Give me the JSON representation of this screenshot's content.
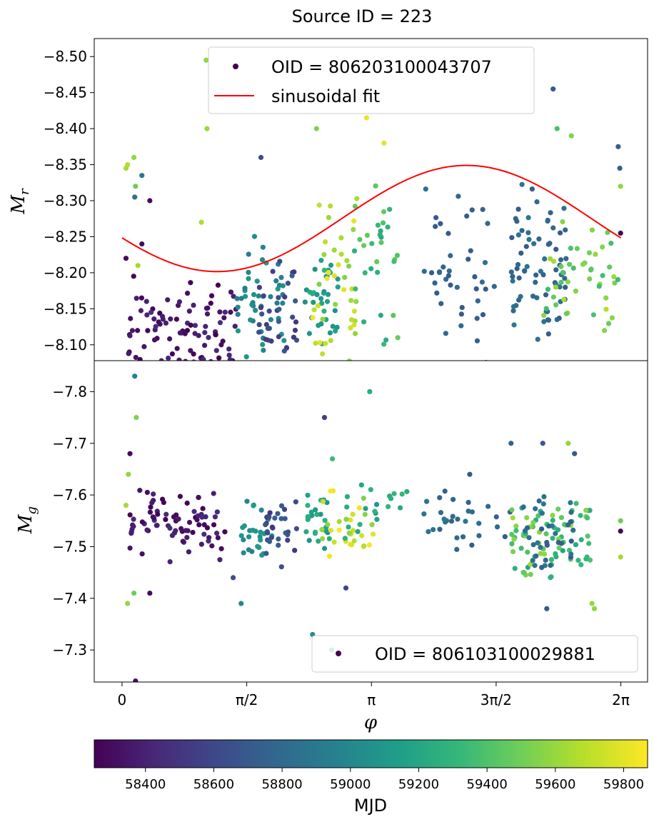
{
  "chart_data": {
    "type": "scatter",
    "title": "Source ID = 223",
    "colors": {
      "fit_line": "#ff0000",
      "viridis": [
        "#440154",
        "#482878",
        "#3e4989",
        "#31688e",
        "#26828e",
        "#1f9e89",
        "#35b779",
        "#6ece58",
        "#b5de2b",
        "#fde725"
      ]
    },
    "x_axis": {
      "label": "φ",
      "range": [
        -0.35,
        6.62
      ],
      "ticks": [
        {
          "value": 0,
          "label": "0"
        },
        {
          "value": 1.5708,
          "label": "π/2"
        },
        {
          "value": 3.1416,
          "label": "π"
        },
        {
          "value": 4.7124,
          "label": "3π/2"
        },
        {
          "value": 6.2832,
          "label": "2π"
        }
      ]
    },
    "panels": [
      {
        "ylabel": "M",
        "ylabel_sub": "r",
        "ylim": [
          -8.078,
          -8.525
        ],
        "yticks": [
          "−8.50",
          "−8.45",
          "−8.40",
          "−8.35",
          "−8.30",
          "−8.25",
          "−8.20",
          "−8.15",
          "−8.10"
        ],
        "ytick_values": [
          -8.5,
          -8.45,
          -8.4,
          -8.35,
          -8.3,
          -8.25,
          -8.2,
          -8.15,
          -8.1
        ],
        "legend": {
          "position": "upper center",
          "entries": [
            "OID = 806203100043707",
            "sinusoidal fit"
          ]
        },
        "fit": {
          "mean": -8.2753,
          "amplitude": 0.0737,
          "peak_phase": 4.34,
          "label": "sinusoidal fit"
        },
        "clusters": [
          {
            "x": [
              0.05,
              1.45
            ],
            "y": [
              -8.2,
              -8.04
            ],
            "n": 100,
            "mjd": [
              58250,
              58470
            ],
            "seed": 11
          },
          {
            "x": [
              1.45,
              2.05
            ],
            "y": [
              -8.27,
              -8.05
            ],
            "n": 45,
            "mjd": [
              58900,
              59120
            ],
            "seed": 12
          },
          {
            "x": [
              1.7,
              2.2
            ],
            "y": [
              -8.24,
              -8.05
            ],
            "n": 35,
            "mjd": [
              58500,
              58750
            ],
            "seed": 13
          },
          {
            "x": [
              2.3,
              2.75
            ],
            "y": [
              -8.24,
              -8.07
            ],
            "n": 35,
            "mjd": [
              59050,
              59300
            ],
            "seed": 14
          },
          {
            "x": [
              2.4,
              3.0
            ],
            "y": [
              -8.32,
              -8.06
            ],
            "n": 40,
            "mjd": [
              59550,
              59870
            ],
            "seed": 15
          },
          {
            "x": [
              2.9,
              3.5
            ],
            "y": [
              -8.35,
              -8.06
            ],
            "n": 30,
            "mjd": [
              59200,
              59500
            ],
            "seed": 16
          },
          {
            "x": [
              3.8,
              4.7
            ],
            "y": [
              -8.33,
              -8.06
            ],
            "n": 40,
            "mjd": [
              58700,
              58850
            ],
            "seed": 17
          },
          {
            "x": [
              4.9,
              5.6
            ],
            "y": [
              -8.34,
              -8.08
            ],
            "n": 70,
            "mjd": [
              58700,
              58900
            ],
            "seed": 18
          },
          {
            "x": [
              5.3,
              6.25
            ],
            "y": [
              -8.3,
              -8.08
            ],
            "n": 45,
            "mjd": [
              59350,
              59700
            ],
            "seed": 19
          }
        ],
        "points": [
          {
            "x": 0.05,
            "y": -8.345,
            "mjd": 59650
          },
          {
            "x": 0.07,
            "y": -8.35,
            "mjd": 59680
          },
          {
            "x": 0.15,
            "y": -8.36,
            "mjd": 59600
          },
          {
            "x": 0.16,
            "y": -8.305,
            "mjd": 58850
          },
          {
            "x": 0.17,
            "y": -8.32,
            "mjd": 59500
          },
          {
            "x": 0.25,
            "y": -8.335,
            "mjd": 58900
          },
          {
            "x": 0.2,
            "y": -8.21,
            "mjd": 59650
          },
          {
            "x": 0.05,
            "y": -8.22,
            "mjd": 58300
          },
          {
            "x": 0.35,
            "y": -8.3,
            "mjd": 58300
          },
          {
            "x": 0.25,
            "y": -8.24,
            "mjd": 58300
          },
          {
            "x": 1.06,
            "y": -8.495,
            "mjd": 59600
          },
          {
            "x": 1.07,
            "y": -8.4,
            "mjd": 59620
          },
          {
            "x": 1.0,
            "y": -8.27,
            "mjd": 59680
          },
          {
            "x": 1.25,
            "y": -8.1,
            "mjd": 58300
          },
          {
            "x": 1.27,
            "y": -8.105,
            "mjd": 58300
          },
          {
            "x": 1.75,
            "y": -8.36,
            "mjd": 58650
          },
          {
            "x": 2.45,
            "y": -8.4,
            "mjd": 59550
          },
          {
            "x": 3.08,
            "y": -8.415,
            "mjd": 59820
          },
          {
            "x": 3.3,
            "y": -8.38,
            "mjd": 59800
          },
          {
            "x": 5.43,
            "y": -8.455,
            "mjd": 58700
          },
          {
            "x": 5.66,
            "y": -8.39,
            "mjd": 59550
          },
          {
            "x": 5.48,
            "y": -8.4,
            "mjd": 59400
          },
          {
            "x": 6.28,
            "y": -8.255,
            "mjd": 58280
          },
          {
            "x": 5.48,
            "y": -8.135,
            "mjd": 58800
          },
          {
            "x": 3.9,
            "y": -8.2,
            "mjd": 58700
          },
          {
            "x": 6.25,
            "y": -8.375,
            "mjd": 58750
          },
          {
            "x": 6.27,
            "y": -8.345,
            "mjd": 58750
          },
          {
            "x": 6.28,
            "y": -8.32,
            "mjd": 59600
          }
        ]
      },
      {
        "ylabel": "M",
        "ylabel_sub": "g",
        "ylim": [
          -7.238,
          -7.86
        ],
        "yticks": [
          "−7.8",
          "−7.7",
          "−7.6",
          "−7.5",
          "−7.4",
          "−7.3"
        ],
        "ytick_values": [
          -7.8,
          -7.7,
          -7.6,
          -7.5,
          -7.4,
          -7.3
        ],
        "legend": {
          "position": "lower right",
          "entries": [
            "OID = 806103100029881"
          ]
        },
        "clusters": [
          {
            "x": [
              0.1,
              1.3
            ],
            "y": [
              -7.62,
              -7.46
            ],
            "n": 80,
            "mjd": [
              58250,
              58470
            ],
            "seed": 21
          },
          {
            "x": [
              1.5,
              1.9
            ],
            "y": [
              -7.6,
              -7.46
            ],
            "n": 25,
            "mjd": [
              58950,
              59150
            ],
            "seed": 22
          },
          {
            "x": [
              1.8,
              2.2
            ],
            "y": [
              -7.62,
              -7.44
            ],
            "n": 30,
            "mjd": [
              58500,
              58750
            ],
            "seed": 23
          },
          {
            "x": [
              2.3,
              2.65
            ],
            "y": [
              -7.62,
              -7.47
            ],
            "n": 25,
            "mjd": [
              59050,
              59300
            ],
            "seed": 24
          },
          {
            "x": [
              2.5,
              3.2
            ],
            "y": [
              -7.62,
              -7.47
            ],
            "n": 30,
            "mjd": [
              59550,
              59870
            ],
            "seed": 25
          },
          {
            "x": [
              2.8,
              3.6
            ],
            "y": [
              -7.65,
              -7.48
            ],
            "n": 20,
            "mjd": [
              59100,
              59400
            ],
            "seed": 26
          },
          {
            "x": [
              3.8,
              4.9
            ],
            "y": [
              -7.62,
              -7.48
            ],
            "n": 30,
            "mjd": [
              58700,
              58900
            ],
            "seed": 27
          },
          {
            "x": [
              4.9,
              5.9
            ],
            "y": [
              -7.6,
              -7.43
            ],
            "n": 80,
            "mjd": [
              59200,
              59650
            ],
            "seed": 28
          },
          {
            "x": [
              5.0,
              5.7
            ],
            "y": [
              -7.6,
              -7.44
            ],
            "n": 35,
            "mjd": [
              58700,
              58900
            ],
            "seed": 29
          }
        ],
        "points": [
          {
            "x": 0.16,
            "y": -7.83,
            "mjd": 58950
          },
          {
            "x": 0.18,
            "y": -7.75,
            "mjd": 59550
          },
          {
            "x": 0.1,
            "y": -7.68,
            "mjd": 58300
          },
          {
            "x": 0.08,
            "y": -7.64,
            "mjd": 59600
          },
          {
            "x": 0.05,
            "y": -7.58,
            "mjd": 59650
          },
          {
            "x": 0.07,
            "y": -7.39,
            "mjd": 59600
          },
          {
            "x": 0.15,
            "y": -7.41,
            "mjd": 59500
          },
          {
            "x": 0.17,
            "y": -7.24,
            "mjd": 58300
          },
          {
            "x": 0.35,
            "y": -7.41,
            "mjd": 58300
          },
          {
            "x": 1.4,
            "y": -7.44,
            "mjd": 58650
          },
          {
            "x": 1.5,
            "y": -7.39,
            "mjd": 59000
          },
          {
            "x": 2.4,
            "y": -7.33,
            "mjd": 59050
          },
          {
            "x": 2.64,
            "y": -7.3,
            "mjd": 59300
          },
          {
            "x": 2.55,
            "y": -7.75,
            "mjd": 58550
          },
          {
            "x": 2.65,
            "y": -7.67,
            "mjd": 59350
          },
          {
            "x": 2.82,
            "y": -7.42,
            "mjd": 58600
          },
          {
            "x": 3.12,
            "y": -7.8,
            "mjd": 59250
          },
          {
            "x": 4.38,
            "y": -7.64,
            "mjd": 58700
          },
          {
            "x": 4.9,
            "y": -7.7,
            "mjd": 58750
          },
          {
            "x": 5.3,
            "y": -7.7,
            "mjd": 58700
          },
          {
            "x": 5.62,
            "y": -7.7,
            "mjd": 59600
          },
          {
            "x": 5.7,
            "y": -7.68,
            "mjd": 58700
          },
          {
            "x": 5.92,
            "y": -7.39,
            "mjd": 59600
          },
          {
            "x": 5.95,
            "y": -7.38,
            "mjd": 59600
          },
          {
            "x": 5.35,
            "y": -7.38,
            "mjd": 58700
          },
          {
            "x": 6.28,
            "y": -7.53,
            "mjd": 58280
          },
          {
            "x": 6.28,
            "y": -7.48,
            "mjd": 59650
          },
          {
            "x": 6.28,
            "y": -7.55,
            "mjd": 59500
          }
        ]
      }
    ],
    "colorbar": {
      "label": "MJD",
      "range": [
        58250,
        59870
      ],
      "ticks": [
        "58400",
        "58600",
        "58800",
        "59000",
        "59200",
        "59400",
        "59600",
        "59800"
      ],
      "tick_values": [
        58400,
        58600,
        58800,
        59000,
        59200,
        59400,
        59600,
        59800
      ]
    }
  }
}
